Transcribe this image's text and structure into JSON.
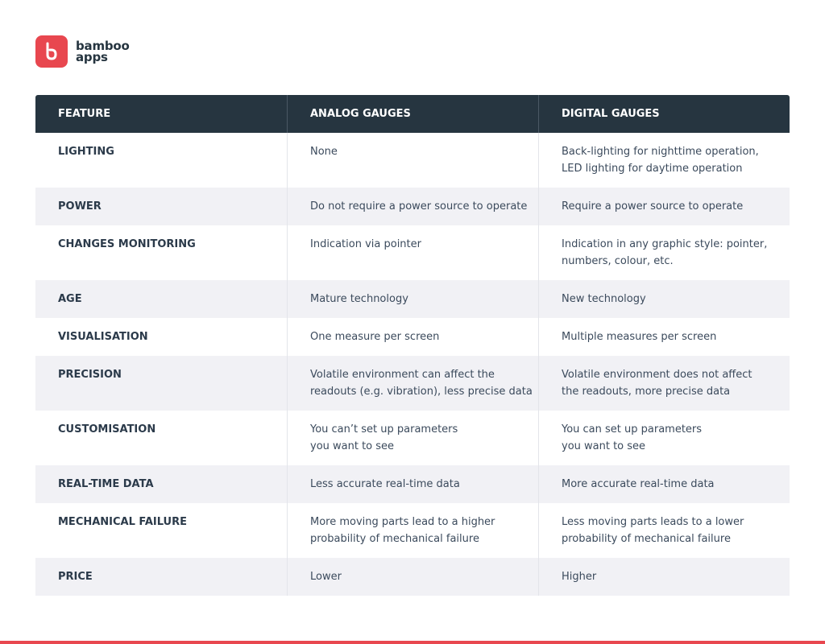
{
  "header": {
    "logo_lines": [
      "bamboo",
      "apps"
    ]
  },
  "table": {
    "columns": [
      "FEATURE",
      "ANALOG GAUGES",
      "DIGITAL GAUGES"
    ],
    "rows": [
      [
        [
          "LIGHTING"
        ],
        [
          "None"
        ],
        [
          "Back-lighting for nighttime operation,",
          "LED lighting for daytime operation"
        ]
      ],
      [
        [
          "POWER"
        ],
        [
          "Do not require a power source to operate"
        ],
        [
          "Require a power source to operate"
        ]
      ],
      [
        [
          "CHANGES MONITORING"
        ],
        [
          "Indication via pointer"
        ],
        [
          "Indication in any graphic style: pointer,",
          "numbers, colour, etc."
        ]
      ],
      [
        [
          "AGE"
        ],
        [
          "Mature technology"
        ],
        [
          "New technology"
        ]
      ],
      [
        [
          "VISUALISATION"
        ],
        [
          "One measure per screen"
        ],
        [
          "Multiple measures per screen"
        ]
      ],
      [
        [
          "PRECISION"
        ],
        [
          "Volatile environment can affect the",
          "readouts (e.g. vibration), less precise data"
        ],
        [
          "Volatile environment does not affect",
          "the readouts, more precise data"
        ]
      ],
      [
        [
          "CUSTOMISATION"
        ],
        [
          "You can’t set up parameters",
          "you want to see"
        ],
        [
          "You can set up parameters",
          "you want to see"
        ]
      ],
      [
        [
          "REAL-TIME DATA"
        ],
        [
          "Less accurate real-time data"
        ],
        [
          "More accurate real-time data"
        ]
      ],
      [
        [
          "MECHANICAL FAILURE"
        ],
        [
          "More moving parts lead to a higher",
          "probability of mechanical failure"
        ],
        [
          "Less moving parts leads to a lower",
          "probability of mechanical failure"
        ]
      ],
      [
        [
          "PRICE"
        ],
        [
          "Lower"
        ],
        [
          "Higher"
        ]
      ]
    ]
  }
}
